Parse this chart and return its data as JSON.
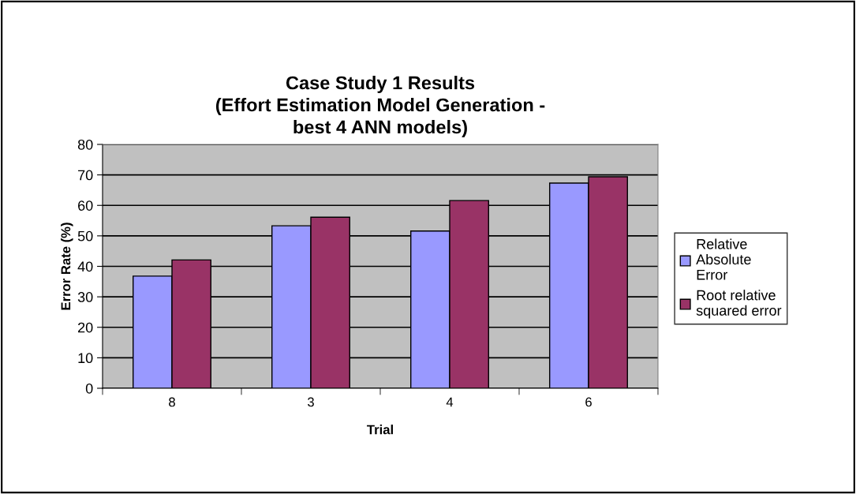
{
  "chart_data": {
    "type": "bar",
    "title": "Case Study 1 Results\n(Effort Estimation Model Generation -\nbest 4 ANN models)",
    "xlabel": "Trial",
    "ylabel": "Error Rate (%)",
    "categories": [
      "8",
      "3",
      "4",
      "6"
    ],
    "series": [
      {
        "name": "Relative\nAbsolute\nError",
        "color": "#9999ff",
        "values": [
          36.8,
          53.3,
          51.6,
          67.3
        ]
      },
      {
        "name": "Root relative\nsquared error",
        "color": "#993366",
        "values": [
          42.1,
          56.1,
          61.6,
          69.4
        ]
      }
    ],
    "ylim": [
      0,
      80
    ],
    "yticks": [
      0,
      10,
      20,
      30,
      40,
      50,
      60,
      70,
      80
    ],
    "grid": "y",
    "legend": "right"
  }
}
